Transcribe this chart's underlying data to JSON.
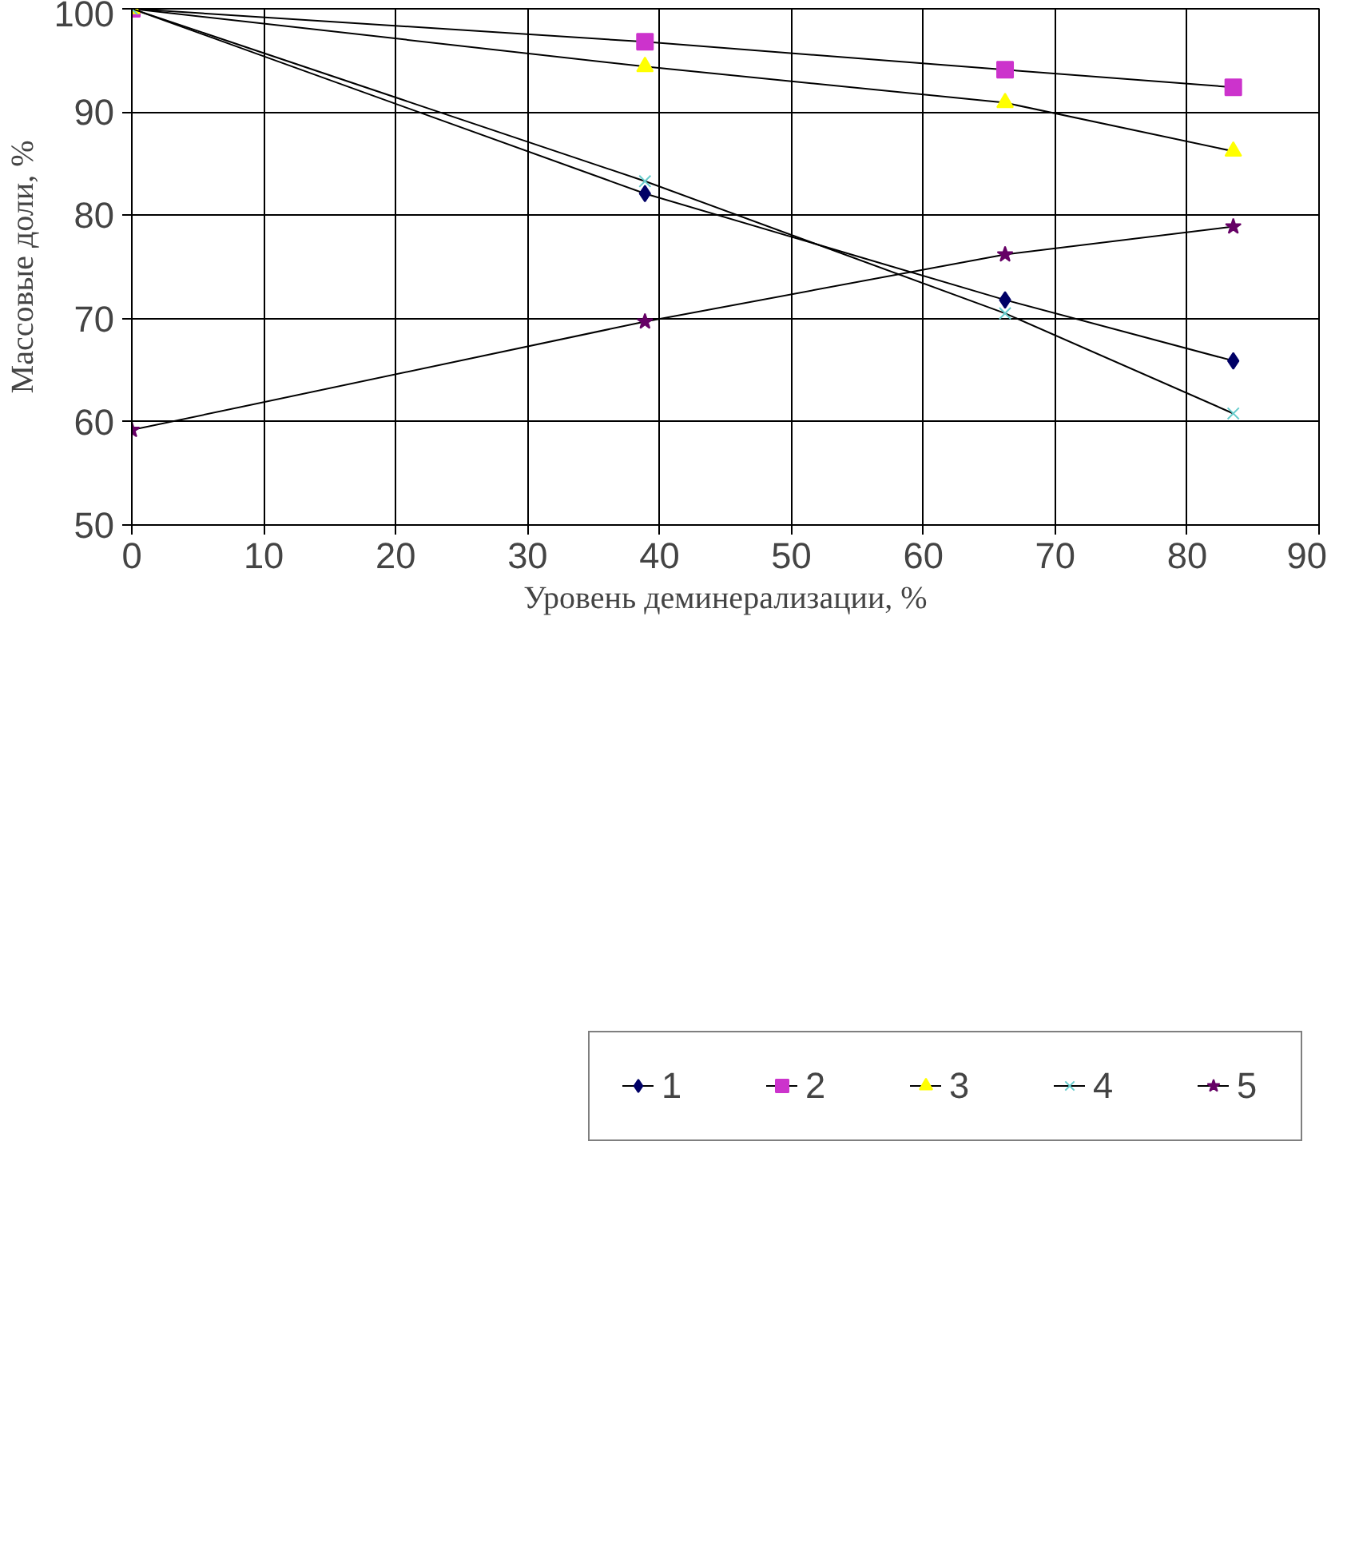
{
  "chart_data": {
    "type": "line",
    "xlabel": "Уровень деминерализации, %",
    "ylabel": "Массовые доли, %",
    "x": [
      0,
      38.9,
      66.2,
      83.5
    ],
    "series": [
      {
        "name": "1",
        "color": "#000066",
        "marker": "diamond",
        "values": [
          100,
          82.1,
          71.8,
          65.9
        ]
      },
      {
        "name": "2",
        "color": "#cc33cc",
        "marker": "square",
        "values": [
          100,
          96.8,
          94.1,
          92.4
        ]
      },
      {
        "name": "3",
        "color": "#ffff00",
        "marker": "triangle",
        "values": [
          100,
          94.4,
          90.9,
          86.2
        ]
      },
      {
        "name": "4",
        "color": "#66cccc",
        "marker": "x",
        "values": [
          100,
          83.3,
          70.5,
          60.8
        ]
      },
      {
        "name": "5",
        "color": "#660066",
        "marker": "star",
        "values": [
          59.2,
          69.7,
          76.2,
          78.9
        ]
      }
    ],
    "xlim": [
      0,
      90
    ],
    "xticks": [
      0,
      10,
      20,
      30,
      40,
      50,
      60,
      70,
      80,
      90
    ],
    "ylim": [
      50,
      100
    ],
    "yticks": [
      50,
      60,
      70,
      80,
      90,
      100
    ],
    "grid": true,
    "legend": "bottom",
    "line_style": "solid"
  }
}
